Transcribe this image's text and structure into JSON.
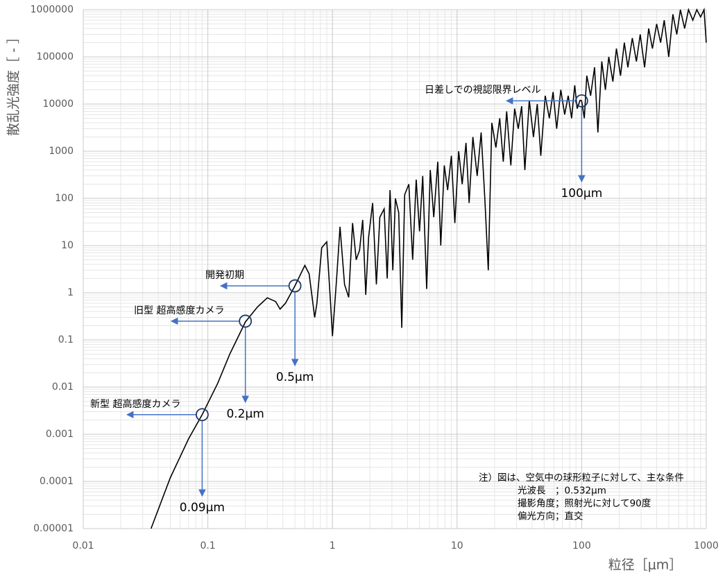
{
  "chart_data": {
    "type": "line",
    "x_label": "粒径［μm］",
    "y_label": "散乱光強度［ - ］",
    "log_x": true,
    "log_y": true,
    "grid": true,
    "minor_grid": true,
    "xlim": [
      0.01,
      1000
    ],
    "ylim": [
      1e-05,
      1000000
    ],
    "xticks": [
      0.01,
      0.1,
      1,
      10,
      100,
      1000
    ],
    "yticks": [
      1e-05,
      0.0001,
      0.001,
      0.01,
      0.1,
      1,
      10,
      100,
      1000,
      10000,
      100000,
      1000000
    ],
    "arrow_color": "#4472c4",
    "series": [
      {
        "color": "#000000",
        "x": [
          0.035,
          0.05,
          0.07,
          0.09,
          0.12,
          0.15,
          0.2,
          0.25,
          0.3,
          0.35,
          0.38,
          0.42,
          0.5,
          0.6,
          0.65,
          0.72,
          0.75,
          0.82,
          0.9,
          0.97,
          1.0,
          1.08,
          1.15,
          1.25,
          1.35,
          1.45,
          1.55,
          1.65,
          1.75,
          1.85,
          1.95,
          2.1,
          2.25,
          2.4,
          2.6,
          2.75,
          2.9,
          3.05,
          3.2,
          3.4,
          3.6,
          3.8,
          4.1,
          4.4,
          4.7,
          5.0,
          5.3,
          5.7,
          6.1,
          6.5,
          7.0,
          7.4,
          7.9,
          8.4,
          9.0,
          9.6,
          10.3,
          11,
          11.8,
          12.5,
          13.4,
          14.5,
          15.6,
          16.7,
          17.8,
          19,
          20.5,
          22,
          23.5,
          25,
          27,
          29,
          31,
          33,
          35,
          38,
          41,
          44,
          47,
          51,
          55,
          59,
          63,
          68,
          73,
          78,
          83,
          88,
          92,
          97,
          100,
          105,
          110,
          118,
          127,
          135,
          145,
          155,
          165,
          178,
          190,
          205,
          220,
          235,
          255,
          275,
          295,
          320,
          345,
          370,
          400,
          430,
          460,
          500,
          540,
          580,
          620,
          670,
          720,
          780,
          840,
          900,
          960,
          1000
        ],
        "values": [
          1e-05,
          0.00012,
          0.0008,
          0.0026,
          0.012,
          0.05,
          0.24,
          0.5,
          0.78,
          0.65,
          0.45,
          0.6,
          1.4,
          3.8,
          2.5,
          0.3,
          0.6,
          9,
          12,
          0.5,
          0.12,
          2,
          25,
          1.5,
          0.8,
          30,
          5,
          8,
          35,
          0.9,
          15,
          80,
          1.5,
          40,
          60,
          2,
          150,
          3,
          100,
          50,
          0.18,
          120,
          200,
          5,
          250,
          20,
          300,
          1.2,
          400,
          40,
          600,
          10,
          500,
          150,
          800,
          30,
          1000,
          200,
          1500,
          80,
          2000,
          300,
          2500,
          100,
          3,
          4000,
          1200,
          5000,
          600,
          7000,
          500,
          8000,
          3000,
          9000,
          400,
          12000,
          2000,
          10000,
          800,
          15000,
          5000,
          18000,
          3000,
          20000,
          6000,
          15000,
          5000,
          25000,
          8000,
          12000,
          11700,
          5000,
          40000,
          15000,
          60000,
          2500,
          80000,
          20000,
          100000,
          30000,
          150000,
          40000,
          200000,
          60000,
          250000,
          80000,
          300000,
          60000,
          400000,
          150000,
          500000,
          200000,
          600000,
          100000,
          800000,
          300000,
          1000000,
          400000,
          1000000,
          600000,
          1000000,
          700000,
          1000000,
          200000
        ]
      }
    ],
    "annotations": [
      {
        "label": "新型 超高感度カメラ",
        "x": 0.09,
        "y": 0.0026,
        "size_label": "0.09μm"
      },
      {
        "label": "旧型 超高感度カメラ",
        "x": 0.2,
        "y": 0.25,
        "size_label": "0.2μm"
      },
      {
        "label": "開発初期",
        "x": 0.5,
        "y": 1.4,
        "size_label": "0.5μm"
      },
      {
        "label": "日差しでの視認限界レベル",
        "x": 100,
        "y": 11700,
        "size_label": "100μm"
      }
    ],
    "note": [
      "注）図は、空気中の球形粒子に対して、主な条件",
      "光波長　；0.532μm",
      "撮影角度；照射光に対して90度",
      "偏光方向；直交"
    ]
  }
}
